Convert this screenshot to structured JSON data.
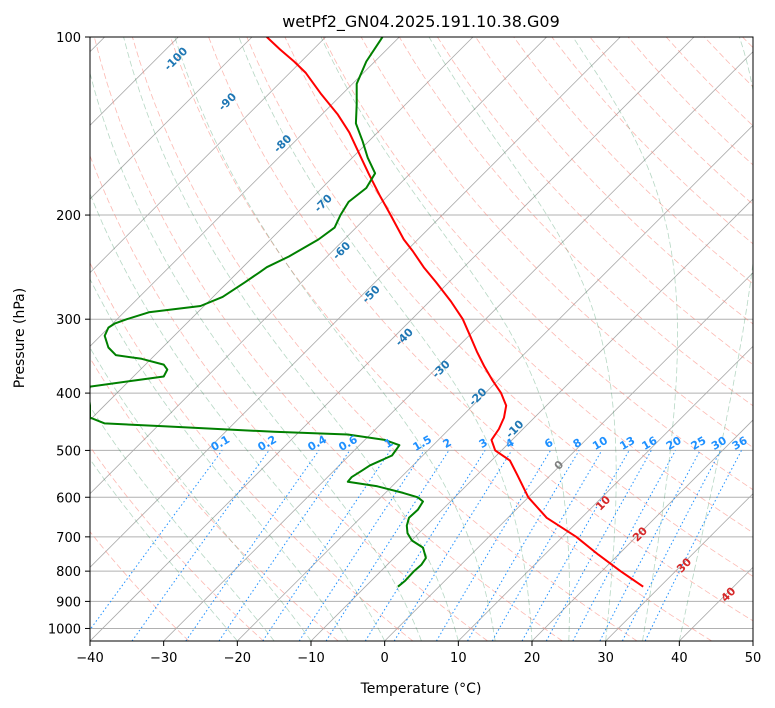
{
  "chart_data": {
    "type": "line",
    "title": "wetPf2_GN04.2025.191.10.38.G09",
    "xlabel": "Temperature (°C)",
    "ylabel": "Pressure (hPa)",
    "xlim": [
      -40,
      50
    ],
    "ylim": [
      1050,
      100
    ],
    "y_scale": "log",
    "x_ticks": [
      "−40",
      "−30",
      "−20",
      "−10",
      "0",
      "10",
      "20",
      "30",
      "40",
      "50"
    ],
    "y_ticks": [
      "100",
      "200",
      "300",
      "400",
      "500",
      "600",
      "700",
      "800",
      "900",
      "1000"
    ],
    "grid": true,
    "colors": {
      "temperature": "#ff0000",
      "dewpoint": "#008000",
      "isotherm": "#808080",
      "dry_adiabat": "#fa8072",
      "moist_adiabat": "#2e8b57",
      "mixing_ratio": "#1e90ff",
      "isotherm_label_positive": "#d62728",
      "isotherm_label_negative": "#1f77b4",
      "isotherm_label_zero": "#808080"
    },
    "series": [
      {
        "key": "temperature",
        "points": [
          [
            35.1,
            850
          ],
          [
            32,
            800
          ],
          [
            29,
            750
          ],
          [
            26,
            700
          ],
          [
            22,
            650
          ],
          [
            19.5,
            600
          ],
          [
            18,
            550
          ],
          [
            17,
            520
          ],
          [
            15,
            500
          ],
          [
            14.5,
            480
          ],
          [
            15.5,
            460
          ],
          [
            16.2,
            440
          ],
          [
            16.5,
            420
          ],
          [
            15.8,
            400
          ],
          [
            14.6,
            380
          ],
          [
            13.5,
            360
          ],
          [
            12.5,
            340
          ],
          [
            11.6,
            320
          ],
          [
            10.6,
            300
          ],
          [
            9,
            280
          ],
          [
            7,
            260
          ],
          [
            5.3,
            245
          ],
          [
            3.8,
            230
          ],
          [
            2.6,
            220
          ],
          [
            0.8,
            200
          ],
          [
            -0.7,
            185
          ],
          [
            -2.2,
            170
          ],
          [
            -3.2,
            160
          ],
          [
            -4.8,
            145
          ],
          [
            -6.4,
            135
          ],
          [
            -8.6,
            125
          ],
          [
            -10.7,
            115
          ],
          [
            -12.3,
            110
          ],
          [
            -14.2,
            105
          ],
          [
            -16,
            100
          ]
        ]
      },
      {
        "key": "dewpoint",
        "points": [
          [
            1.8,
            850
          ],
          [
            2.8,
            830
          ],
          [
            4,
            800
          ],
          [
            5,
            780
          ],
          [
            5.6,
            760
          ],
          [
            5.2,
            730
          ],
          [
            3.7,
            710
          ],
          [
            3.1,
            690
          ],
          [
            3,
            670
          ],
          [
            3.3,
            650
          ],
          [
            4.5,
            630
          ],
          [
            5.2,
            610
          ],
          [
            4.5,
            600
          ],
          [
            2.5,
            590
          ],
          [
            -1,
            575
          ],
          [
            -5,
            565
          ],
          [
            -4.5,
            555
          ],
          [
            -3,
            540
          ],
          [
            -2,
            530
          ],
          [
            1,
            510
          ],
          [
            2,
            490
          ],
          [
            0,
            480
          ],
          [
            -5,
            470
          ],
          [
            -15,
            465
          ],
          [
            -30,
            455
          ],
          [
            -38,
            450
          ],
          [
            -40,
            440
          ],
          [
            -40,
            420
          ],
          [
            -40.2,
            400
          ],
          [
            -40,
            390
          ],
          [
            -30,
            375
          ],
          [
            -29.5,
            365
          ],
          [
            -30,
            358
          ],
          [
            -33,
            350
          ],
          [
            -36.5,
            345
          ],
          [
            -37.5,
            335
          ],
          [
            -38,
            320
          ],
          [
            -37.5,
            310
          ],
          [
            -36.6,
            305
          ],
          [
            -35,
            300
          ],
          [
            -32,
            292
          ],
          [
            -25,
            285
          ],
          [
            -22,
            275
          ],
          [
            -19,
            260
          ],
          [
            -17,
            250
          ],
          [
            -16,
            245
          ],
          [
            -13,
            235
          ],
          [
            -9,
            220
          ],
          [
            -6.8,
            210
          ],
          [
            -6,
            200
          ],
          [
            -4.9,
            190
          ],
          [
            -2.5,
            180
          ],
          [
            -1.3,
            170
          ],
          [
            -2.3,
            160
          ],
          [
            -3,
            150
          ],
          [
            -3.9,
            140
          ],
          [
            -3.8,
            130
          ],
          [
            -3.8,
            120
          ],
          [
            -2.5,
            110
          ],
          [
            -0.3,
            100
          ]
        ]
      }
    ],
    "isotherm_labels": [
      "-100",
      "-90",
      "-80",
      "-70",
      "-60",
      "-50",
      "-40",
      "-30",
      "-20",
      "-10",
      "0",
      "10",
      "20",
      "30",
      "40"
    ],
    "mixing_ratio_labels": [
      "0.1",
      "0.2",
      "0.4",
      "0.6",
      "1",
      "1.5",
      "2",
      "3",
      "4",
      "6",
      "8",
      "10",
      "13",
      "16",
      "20",
      "25",
      "30",
      "36"
    ]
  }
}
